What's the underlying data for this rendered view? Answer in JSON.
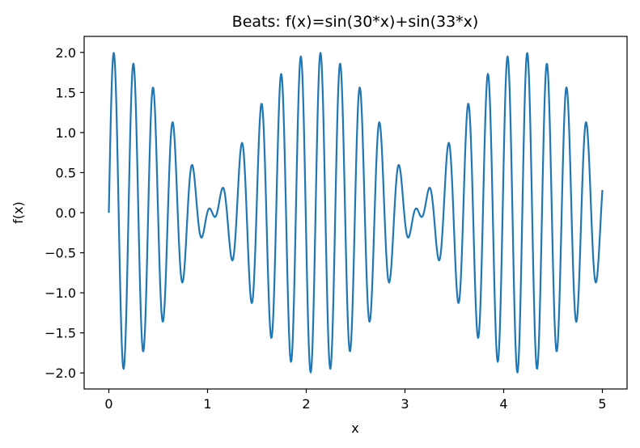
{
  "chart_data": {
    "type": "line",
    "title": "Beats: f(x)=sin(30*x)+sin(33*x)",
    "xlabel": "x",
    "ylabel": "f(x)",
    "xlim": [
      -0.25,
      5.25
    ],
    "ylim": [
      -2.2,
      2.2
    ],
    "x_ticks": [
      0,
      1,
      2,
      3,
      4,
      5
    ],
    "x_tick_labels": [
      "0",
      "1",
      "2",
      "3",
      "4",
      "5"
    ],
    "y_ticks": [
      -2.0,
      -1.5,
      -1.0,
      -0.5,
      0.0,
      0.5,
      1.0,
      1.5,
      2.0
    ],
    "y_tick_labels": [
      "−2.0",
      "−1.5",
      "−1.0",
      "−0.5",
      "0.0",
      "0.5",
      "1.0",
      "1.5",
      "2.0"
    ],
    "grid": false,
    "series": [
      {
        "function": "sin(30*x)+sin(33*x)",
        "x_start": 0,
        "x_end": 5,
        "samples": 1000,
        "color": "#1f77b4"
      }
    ]
  }
}
